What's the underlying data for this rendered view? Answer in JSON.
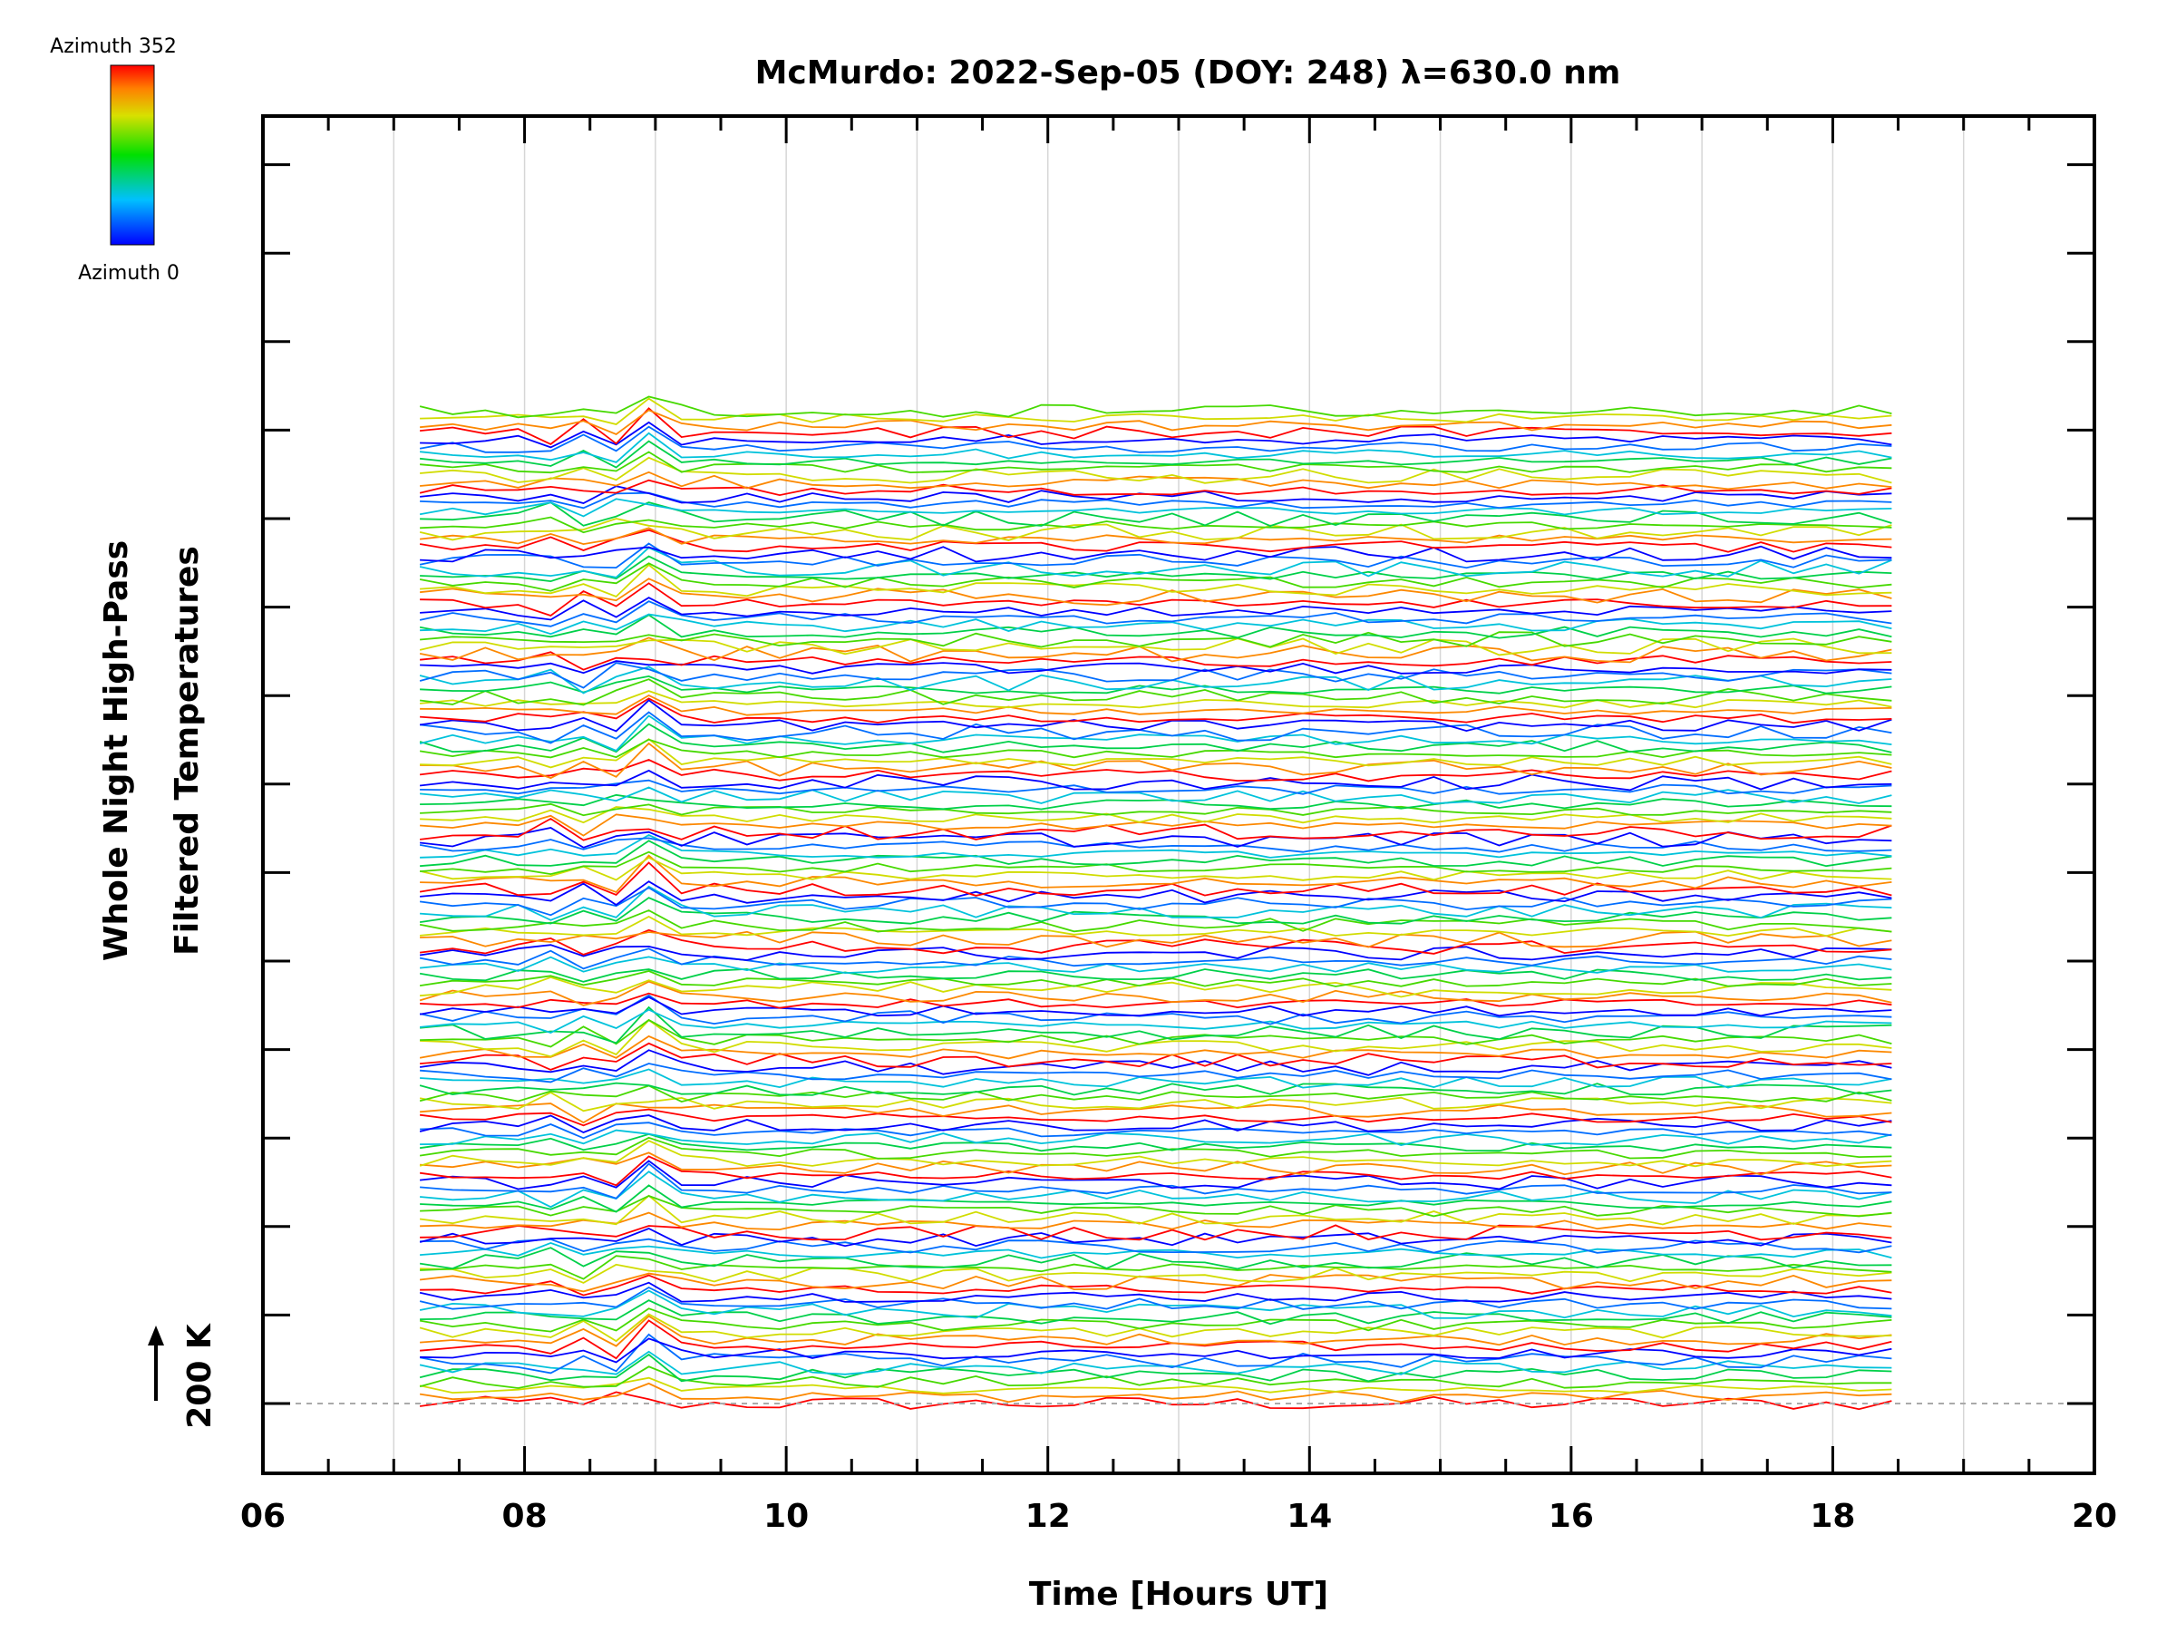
{
  "chart_data": {
    "type": "line",
    "title": "McMurdo: 2022-Sep-05 (DOY: 248) λ=630.0 nm",
    "xlabel": "Time [Hours UT]",
    "ylabel_line1": "Whole Night High-Pass",
    "ylabel_line2": "Filtered Temperatures",
    "scale_label": "200 K",
    "xlim": [
      6,
      20
    ],
    "x_ticks": [
      "06",
      "08",
      "10",
      "12",
      "14",
      "16",
      "18",
      "20"
    ],
    "x_start": 7.2,
    "x_end": 18.45,
    "x_step": 0.25,
    "colorbar": {
      "top_label": "Azimuth 352",
      "bottom_label": "Azimuth 0",
      "min": 0,
      "max": 352
    },
    "azimuth_cycle": 8,
    "series_count": 140,
    "series_offset_k": 15,
    "grid": true
  }
}
